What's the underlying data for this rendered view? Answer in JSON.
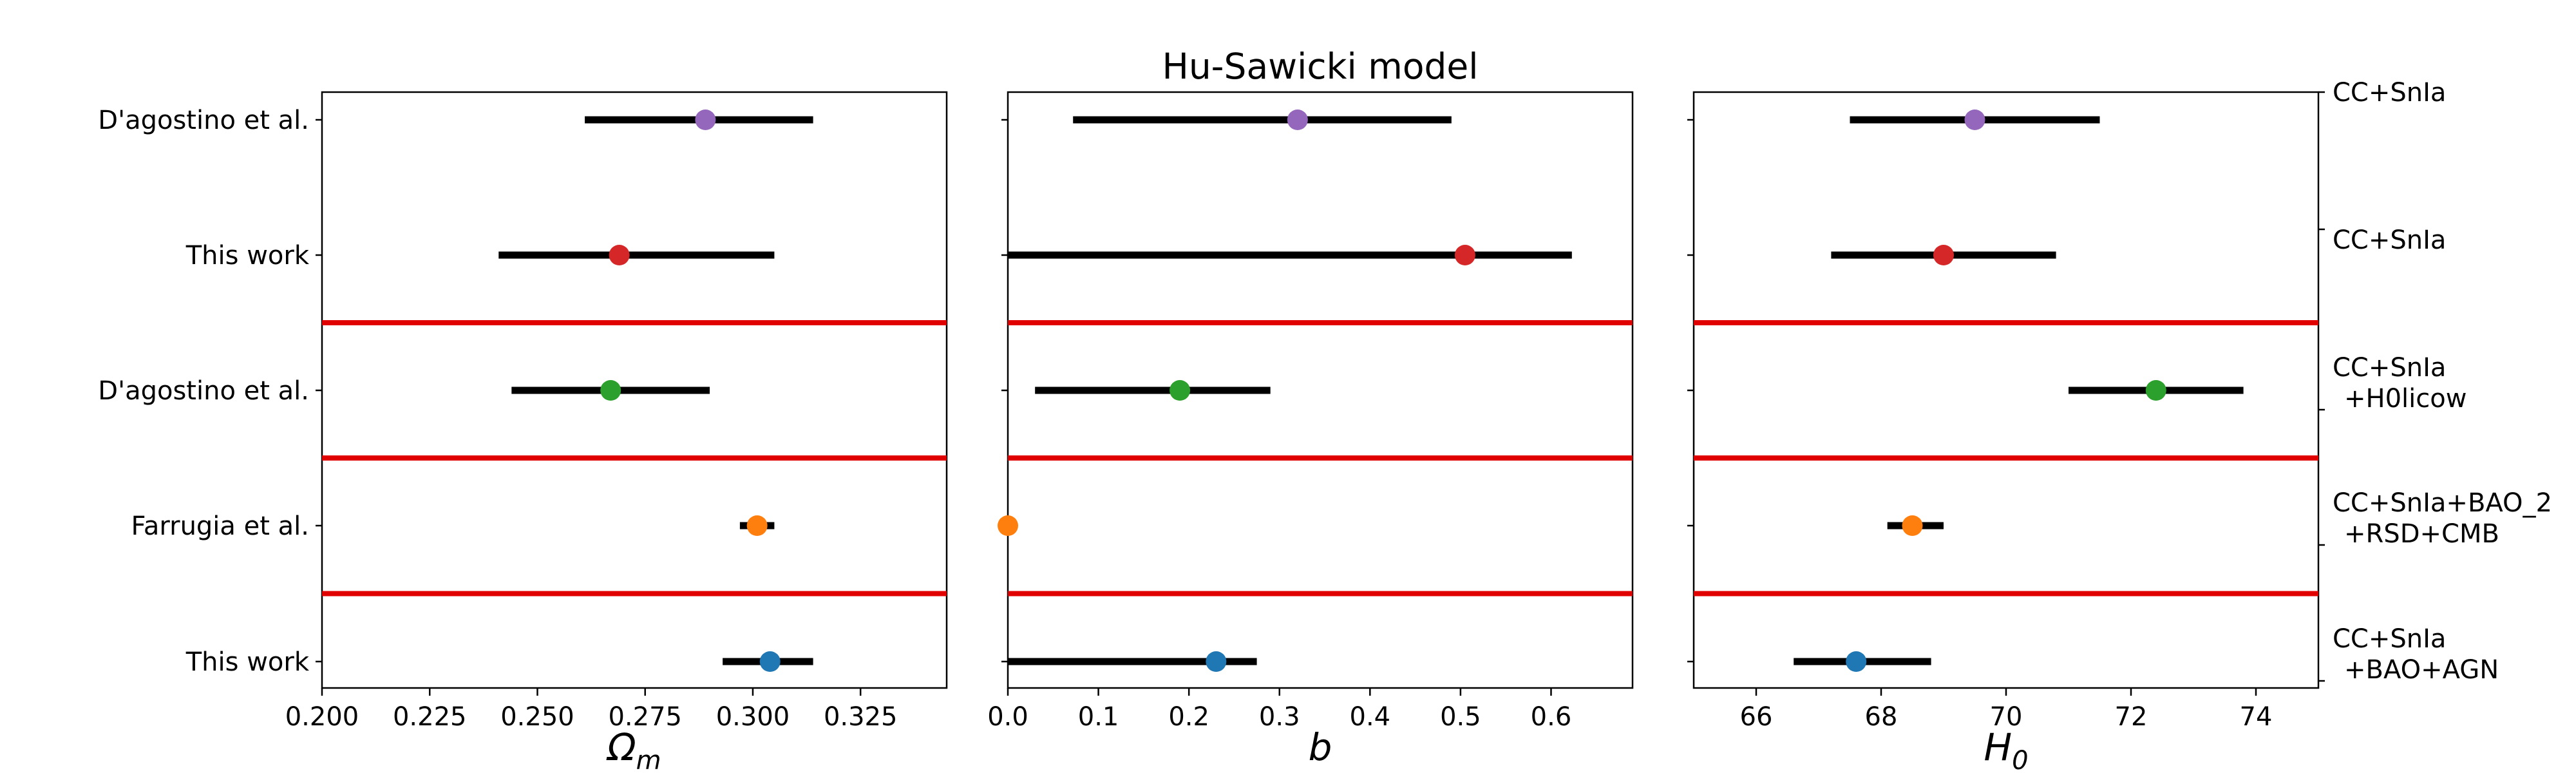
{
  "chart_data": {
    "type": "scatter",
    "title": "Hu-Sawicki model",
    "rows": [
      {
        "label": "D'agostino et al.",
        "dataset": [
          "CC+SnIa"
        ]
      },
      {
        "label": "This work",
        "dataset": [
          "CC+SnIa"
        ]
      },
      {
        "label": "D'agostino et al.",
        "dataset": [
          "CC+SnIa",
          "+H0licow"
        ]
      },
      {
        "label": "Farrugia et al.",
        "dataset": [
          "CC+SnIa+BAO_2",
          "+RSD+CMB"
        ]
      },
      {
        "label": "This work",
        "dataset": [
          "CC+SnIa",
          "+BAO+AGN"
        ]
      }
    ],
    "separators_after_row": [
      1,
      2,
      3
    ],
    "panels": [
      {
        "xlabel": "Ω",
        "xlabel_sub": "m",
        "xlim": [
          0.2,
          0.345
        ],
        "xticks": [
          0.2,
          0.225,
          0.25,
          0.275,
          0.3,
          0.325
        ],
        "xtick_labels": [
          "0.200",
          "0.225",
          "0.250",
          "0.275",
          "0.300",
          "0.325"
        ],
        "points": [
          {
            "value": 0.289,
            "low": 0.261,
            "high": 0.314,
            "color": "#9467bd"
          },
          {
            "value": 0.269,
            "low": 0.241,
            "high": 0.305,
            "color": "#d62728"
          },
          {
            "value": 0.267,
            "low": 0.244,
            "high": 0.29,
            "color": "#2ca02c"
          },
          {
            "value": 0.301,
            "low": 0.297,
            "high": 0.305,
            "color": "#ff7f0e"
          },
          {
            "value": 0.304,
            "low": 0.293,
            "high": 0.314,
            "color": "#1f77b4"
          }
        ]
      },
      {
        "xlabel": "b",
        "xlabel_sub": "",
        "xlim": [
          0.0,
          0.69
        ],
        "xticks": [
          0.0,
          0.1,
          0.2,
          0.3,
          0.4,
          0.5,
          0.6
        ],
        "xtick_labels": [
          "0.0",
          "0.1",
          "0.2",
          "0.3",
          "0.4",
          "0.5",
          "0.6"
        ],
        "points": [
          {
            "value": 0.32,
            "low": 0.072,
            "high": 0.49,
            "color": "#9467bd"
          },
          {
            "value": 0.505,
            "low": 0.0,
            "high": 0.623,
            "color": "#d62728"
          },
          {
            "value": 0.19,
            "low": 0.03,
            "high": 0.29,
            "color": "#2ca02c"
          },
          {
            "value": 0.0,
            "low": 0.0,
            "high": 0.0,
            "color": "#ff7f0e"
          },
          {
            "value": 0.23,
            "low": 0.0,
            "high": 0.275,
            "color": "#1f77b4"
          }
        ]
      },
      {
        "xlabel": "H",
        "xlabel_sub": "0",
        "xlim": [
          65.0,
          75.0
        ],
        "xticks": [
          66,
          68,
          70,
          72,
          74
        ],
        "xtick_labels": [
          "66",
          "68",
          "70",
          "72",
          "74"
        ],
        "points": [
          {
            "value": 69.5,
            "low": 67.5,
            "high": 71.5,
            "color": "#9467bd"
          },
          {
            "value": 69.0,
            "low": 67.2,
            "high": 70.8,
            "color": "#d62728"
          },
          {
            "value": 72.4,
            "low": 71.0,
            "high": 73.8,
            "color": "#2ca02c"
          },
          {
            "value": 68.5,
            "low": 68.1,
            "high": 69.0,
            "color": "#ff7f0e"
          },
          {
            "value": 67.6,
            "low": 66.6,
            "high": 68.8,
            "color": "#1f77b4"
          }
        ]
      }
    ],
    "grid": false,
    "legend": "none"
  }
}
